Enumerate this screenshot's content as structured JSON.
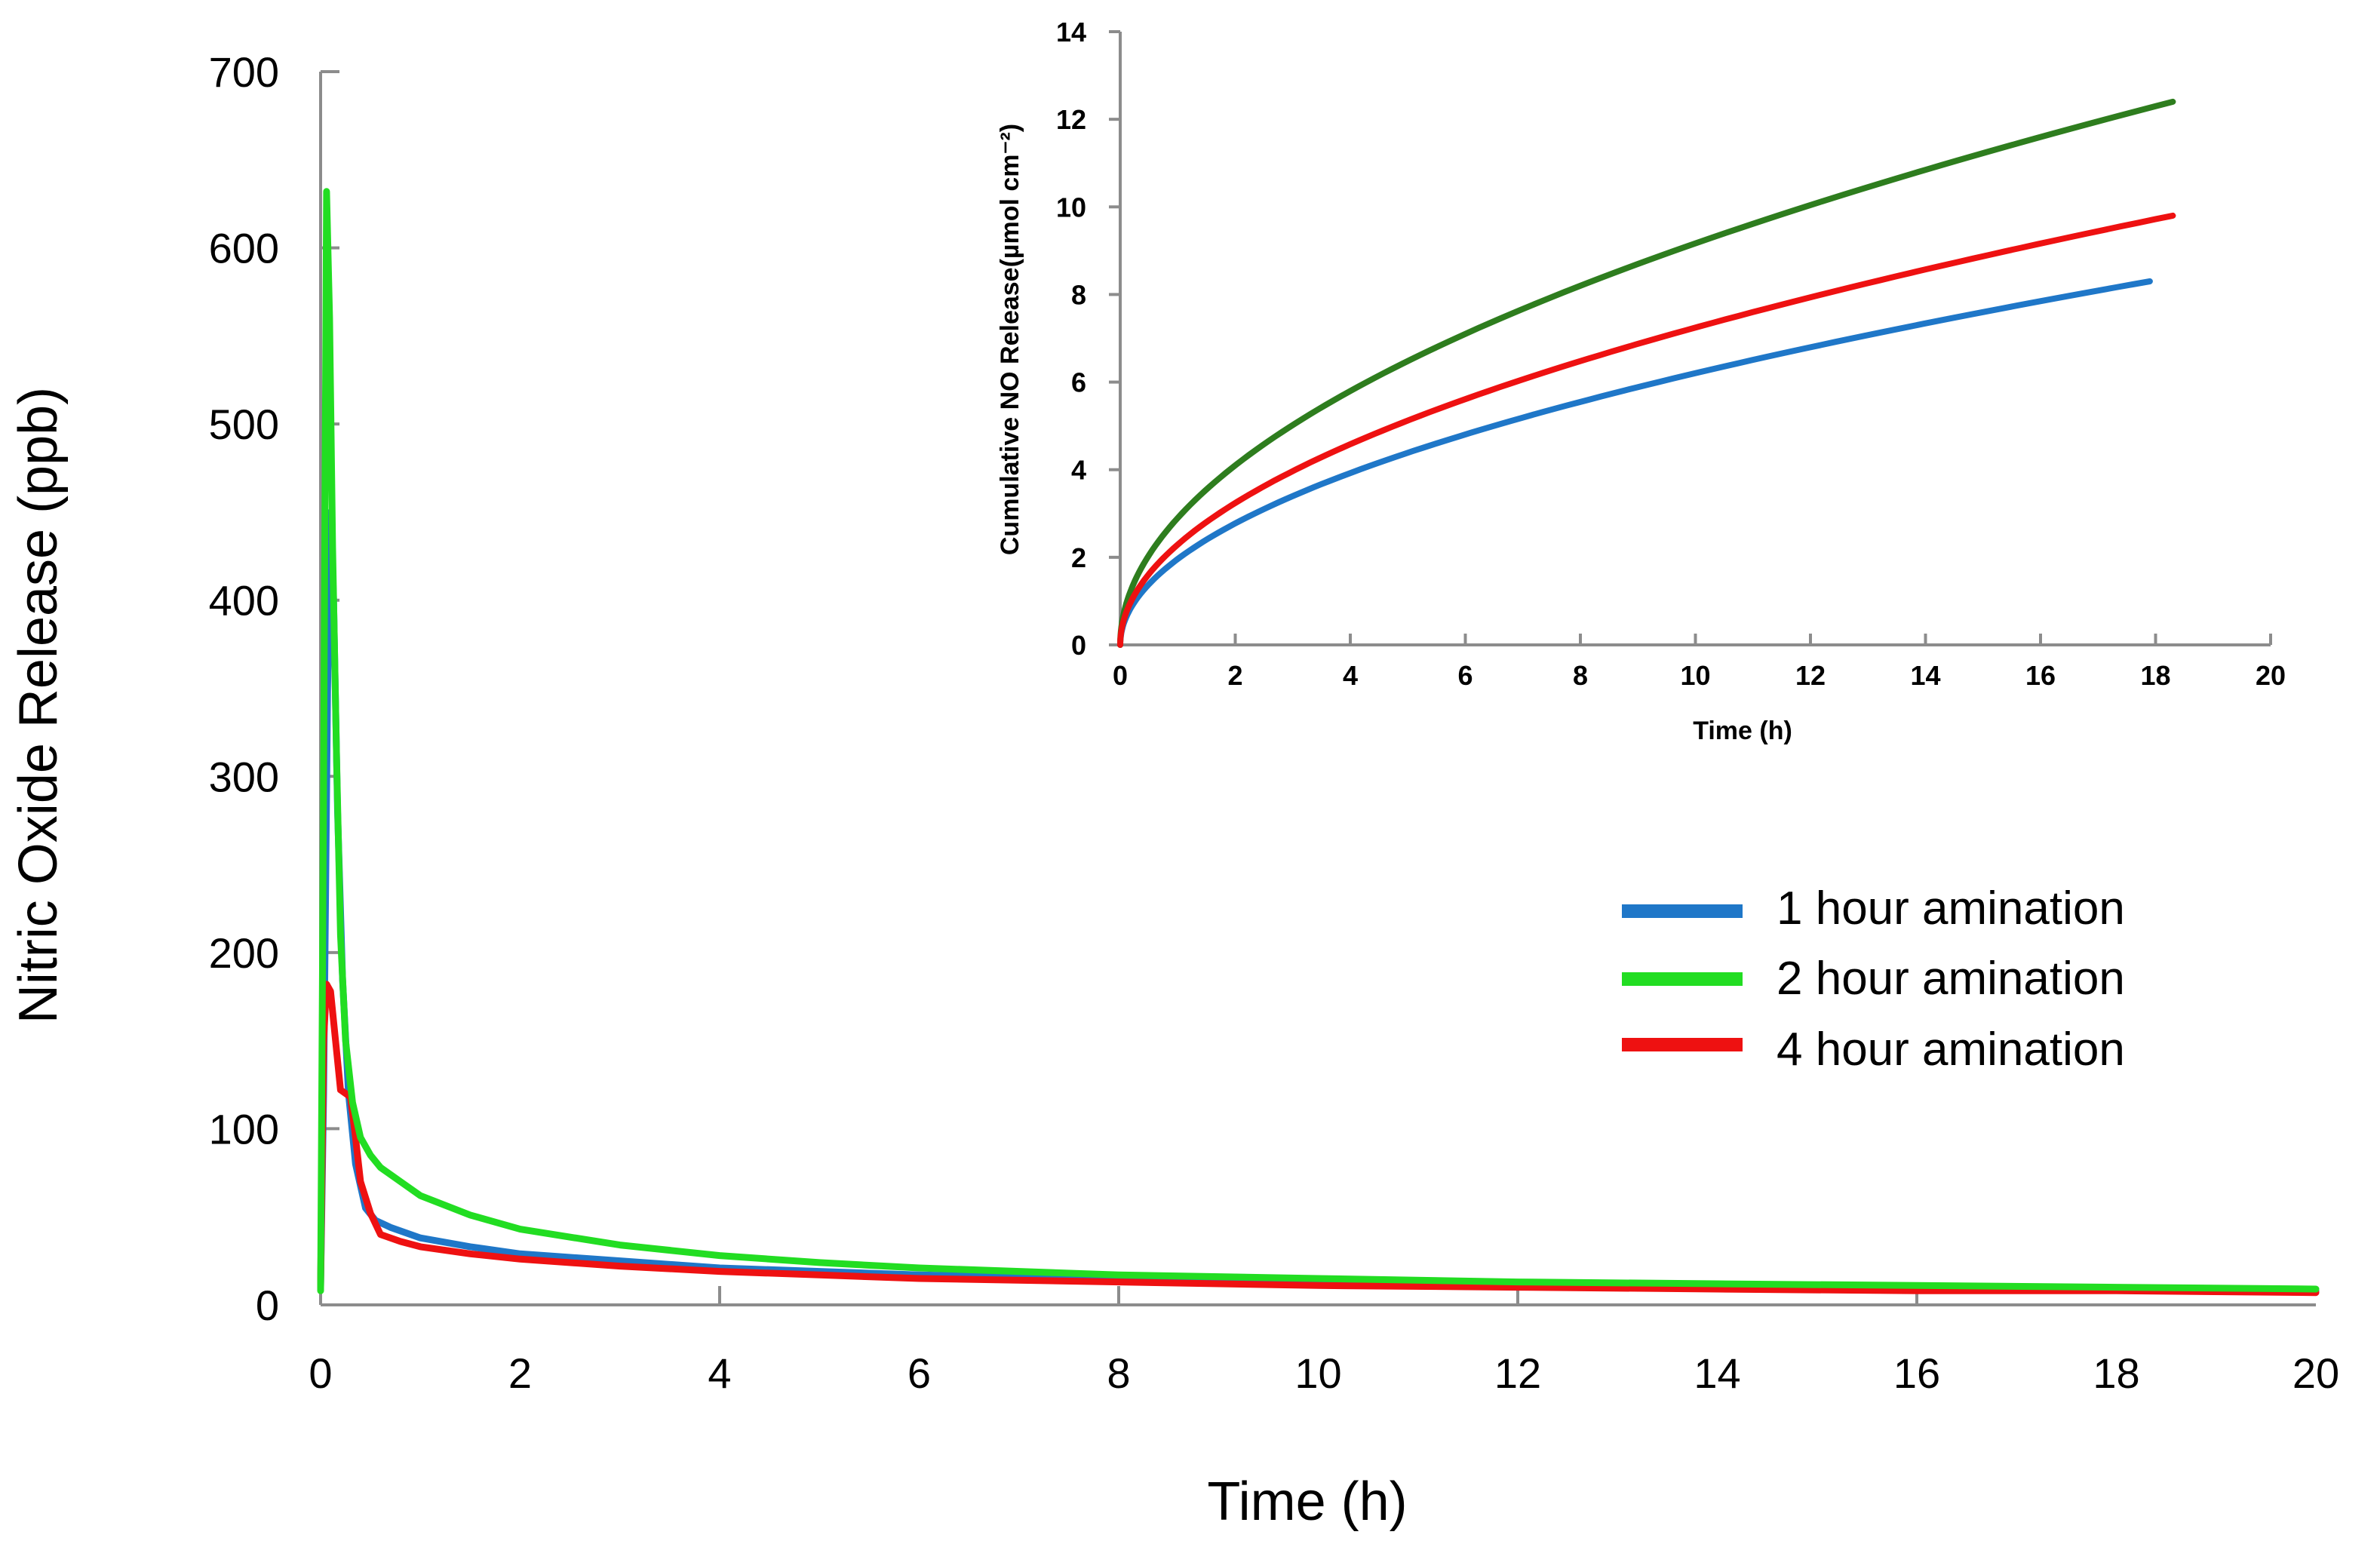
{
  "chart_data": [
    {
      "id": "main",
      "type": "line",
      "title": "",
      "xlabel": "Time (h)",
      "ylabel": "Nitric Oxide Release  (ppb)",
      "xlim": [
        0,
        20
      ],
      "ylim": [
        0,
        700
      ],
      "xticks": [
        0,
        2,
        4,
        6,
        8,
        10,
        12,
        14,
        16,
        18,
        20
      ],
      "yticks": [
        0,
        100,
        200,
        300,
        400,
        500,
        600,
        700
      ],
      "grid": false,
      "legend_position": "right",
      "series": [
        {
          "name": "1 hour amination",
          "color": "#1f77c8",
          "x": [
            0,
            0.03,
            0.07,
            0.1,
            0.13,
            0.17,
            0.22,
            0.28,
            0.35,
            0.45,
            0.55,
            0.7,
            1,
            1.5,
            2,
            3,
            4,
            5,
            6,
            8,
            10,
            12,
            14,
            16,
            18,
            20
          ],
          "y": [
            10,
            120,
            350,
            450,
            400,
            280,
            185,
            120,
            80,
            55,
            48,
            44,
            38,
            33,
            29,
            25,
            21,
            19,
            17,
            15,
            13,
            12,
            11,
            10,
            9,
            8
          ]
        },
        {
          "name": "2 hour amination",
          "color": "#22dd22",
          "x": [
            0,
            0.03,
            0.06,
            0.09,
            0.12,
            0.16,
            0.2,
            0.25,
            0.32,
            0.4,
            0.5,
            0.6,
            0.8,
            1,
            1.5,
            2,
            3,
            4,
            5,
            6,
            8,
            10,
            12,
            14,
            16,
            18,
            20
          ],
          "y": [
            8,
            300,
            632,
            560,
            430,
            310,
            210,
            150,
            115,
            95,
            85,
            78,
            70,
            62,
            51,
            43,
            34,
            28,
            24,
            21,
            17,
            15,
            13,
            12,
            11,
            10,
            9
          ]
        },
        {
          "name": "4 hour amination",
          "color": "#ee1111",
          "x": [
            0,
            0.03,
            0.06,
            0.1,
            0.15,
            0.2,
            0.25,
            0.3,
            0.35,
            0.4,
            0.5,
            0.6,
            0.8,
            1,
            1.5,
            2,
            3,
            4,
            5,
            6,
            8,
            10,
            12,
            14,
            16,
            18,
            20
          ],
          "y": [
            10,
            150,
            182,
            178,
            150,
            122,
            120,
            118,
            95,
            70,
            52,
            40,
            36,
            33,
            29,
            26,
            22,
            19,
            17,
            15,
            13,
            11,
            10,
            9,
            8,
            8,
            7
          ]
        }
      ]
    },
    {
      "id": "inset",
      "type": "line",
      "title": "",
      "xlabel": "Time (h)",
      "ylabel": "Cumulative NO Release(µmol cm⁻²)",
      "xlim": [
        0,
        20
      ],
      "ylim": [
        0,
        14
      ],
      "xticks": [
        0,
        2,
        4,
        6,
        8,
        10,
        12,
        14,
        16,
        18,
        20
      ],
      "yticks": [
        0,
        2,
        4,
        6,
        8,
        10,
        12,
        14
      ],
      "grid": false,
      "series": [
        {
          "name": "1 hour amination",
          "color": "#1f77c8",
          "x_end": 17.9,
          "end_value": 8.3
        },
        {
          "name": "2 hour amination",
          "color": "#2e7d1e",
          "x_end": 18.3,
          "end_value": 12.4
        },
        {
          "name": "4 hour amination",
          "color": "#ee1111",
          "x_end": 18.3,
          "end_value": 9.8
        }
      ]
    }
  ]
}
